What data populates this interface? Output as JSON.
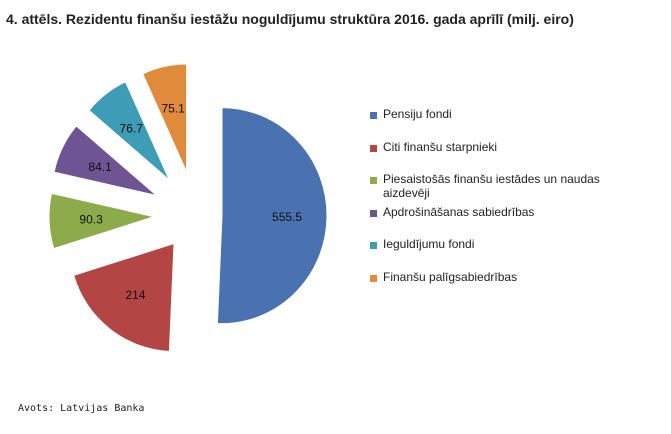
{
  "title": "4. attēls. Rezidentu finanšu iestāžu noguldījumu struktūra 2016. gada aprīlī (milj. eiro)",
  "source": "Avots: Latvijas Banka",
  "chart_data": {
    "type": "pie",
    "exploded": true,
    "title": "4. attēls. Rezidentu finanšu iestāžu noguldījumu struktūra 2016. gada aprīlī (milj. eiro)",
    "legend_position": "right",
    "categories": [
      "Pensiju fondi",
      "Citi finanšu starpnieki",
      "Piesaistošās finanšu iestādes un naudas aizdevēji",
      "Apdrošināšanas sabiedrības",
      "Ieguldījumu fondi",
      "Finanšu palīgsabiedrības"
    ],
    "values": [
      555.5,
      214,
      90.3,
      84.1,
      76.7,
      75.1
    ],
    "labels": [
      "555.5",
      "214",
      "90.3",
      "84.1",
      "76.7",
      "75.1"
    ],
    "colors": [
      "#4a72b0",
      "#b44545",
      "#8eab4c",
      "#6e5493",
      "#3e9cb7",
      "#e08a3c"
    ]
  }
}
